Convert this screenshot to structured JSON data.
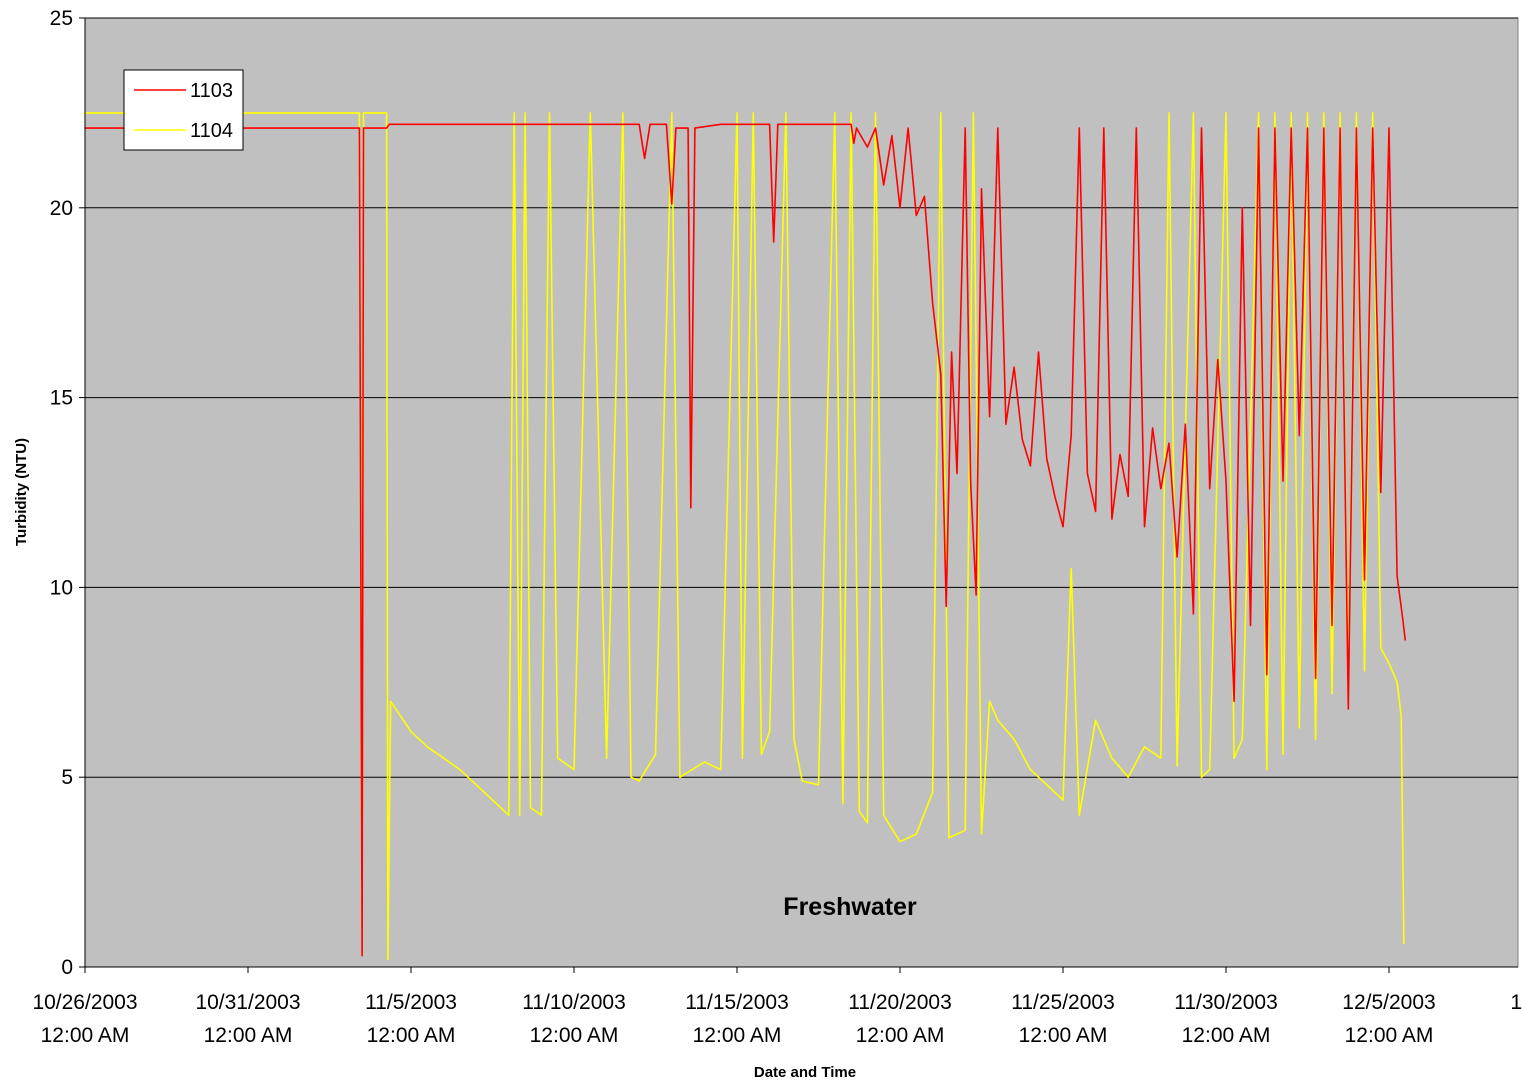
{
  "chart_data": {
    "type": "line",
    "xlabel": "Date and Time",
    "ylabel": "Turbidity (NTU)",
    "annotation": "Freshwater",
    "ylim": [
      0,
      25
    ],
    "yticks": [
      0,
      5,
      10,
      15,
      20,
      25
    ],
    "xlim": [
      "2003-10-26 00:00",
      "2003-12-09 00:00"
    ],
    "xticks": [
      {
        "date": "2003-10-26 00:00",
        "line1": "10/26/2003",
        "line2": "12:00 AM"
      },
      {
        "date": "2003-10-31 00:00",
        "line1": "10/31/2003",
        "line2": "12:00 AM"
      },
      {
        "date": "2003-11-05 00:00",
        "line1": "11/5/2003",
        "line2": "12:00 AM"
      },
      {
        "date": "2003-11-10 00:00",
        "line1": "11/10/2003",
        "line2": "12:00 AM"
      },
      {
        "date": "2003-11-15 00:00",
        "line1": "11/15/2003",
        "line2": "12:00 AM"
      },
      {
        "date": "2003-11-20 00:00",
        "line1": "11/20/2003",
        "line2": "12:00 AM"
      },
      {
        "date": "2003-11-25 00:00",
        "line1": "11/25/2003",
        "line2": "12:00 AM"
      },
      {
        "date": "2003-11-30 00:00",
        "line1": "11/30/2003",
        "line2": "12:00 AM"
      },
      {
        "date": "2003-12-05 00:00",
        "line1": "12/5/2003",
        "line2": "12:00 AM"
      },
      {
        "date": "2003-12-10 00:00",
        "line1": "1",
        "line2": ""
      }
    ],
    "grid": {
      "horizontal": true,
      "vertical": false
    },
    "legend_position": "top-left",
    "background_color": "#c0c0c0",
    "series": [
      {
        "name": "1103",
        "color": "#ff0000",
        "points": [
          [
            "2003-10-26 00:00",
            22.1
          ],
          [
            "2003-11-03 10:00",
            22.1
          ],
          [
            "2003-11-03 12:00",
            0.3
          ],
          [
            "2003-11-03 13:00",
            22.1
          ],
          [
            "2003-11-04 06:00",
            22.1
          ],
          [
            "2003-11-04 08:00",
            22.2
          ],
          [
            "2003-11-12 00:00",
            22.2
          ],
          [
            "2003-11-12 04:00",
            21.3
          ],
          [
            "2003-11-12 08:00",
            22.2
          ],
          [
            "2003-11-12 20:00",
            22.2
          ],
          [
            "2003-11-13 00:00",
            20.1
          ],
          [
            "2003-11-13 03:00",
            22.1
          ],
          [
            "2003-11-13 12:00",
            22.1
          ],
          [
            "2003-11-13 14:00",
            12.1
          ],
          [
            "2003-11-13 17:00",
            22.1
          ],
          [
            "2003-11-14 12:00",
            22.2
          ],
          [
            "2003-11-16 00:00",
            22.2
          ],
          [
            "2003-11-16 03:00",
            19.1
          ],
          [
            "2003-11-16 06:00",
            22.2
          ],
          [
            "2003-11-18 12:00",
            22.2
          ],
          [
            "2003-11-18 14:00",
            21.7
          ],
          [
            "2003-11-18 16:00",
            22.1
          ],
          [
            "2003-11-19 00:00",
            21.6
          ],
          [
            "2003-11-19 06:00",
            22.1
          ],
          [
            "2003-11-19 12:00",
            20.6
          ],
          [
            "2003-11-19 18:00",
            21.9
          ],
          [
            "2003-11-20 00:00",
            20.0
          ],
          [
            "2003-11-20 06:00",
            22.1
          ],
          [
            "2003-11-20 12:00",
            19.8
          ],
          [
            "2003-11-20 18:00",
            20.3
          ],
          [
            "2003-11-21 00:00",
            17.5
          ],
          [
            "2003-11-21 06:00",
            15.6
          ],
          [
            "2003-11-21 10:00",
            9.5
          ],
          [
            "2003-11-21 14:00",
            16.2
          ],
          [
            "2003-11-21 18:00",
            13.0
          ],
          [
            "2003-11-22 00:00",
            22.1
          ],
          [
            "2003-11-22 04:00",
            12.8
          ],
          [
            "2003-11-22 08:00",
            9.8
          ],
          [
            "2003-11-22 12:00",
            20.5
          ],
          [
            "2003-11-22 18:00",
            14.5
          ],
          [
            "2003-11-23 00:00",
            22.1
          ],
          [
            "2003-11-23 06:00",
            14.3
          ],
          [
            "2003-11-23 12:00",
            15.8
          ],
          [
            "2003-11-23 18:00",
            13.9
          ],
          [
            "2003-11-24 00:00",
            13.2
          ],
          [
            "2003-11-24 06:00",
            16.2
          ],
          [
            "2003-11-24 12:00",
            13.4
          ],
          [
            "2003-11-24 18:00",
            12.4
          ],
          [
            "2003-11-25 00:00",
            11.6
          ],
          [
            "2003-11-25 06:00",
            14.0
          ],
          [
            "2003-11-25 12:00",
            22.1
          ],
          [
            "2003-11-25 18:00",
            13.0
          ],
          [
            "2003-11-26 00:00",
            12.0
          ],
          [
            "2003-11-26 06:00",
            22.1
          ],
          [
            "2003-11-26 12:00",
            11.8
          ],
          [
            "2003-11-26 18:00",
            13.5
          ],
          [
            "2003-11-27 00:00",
            12.4
          ],
          [
            "2003-11-27 06:00",
            22.1
          ],
          [
            "2003-11-27 12:00",
            11.6
          ],
          [
            "2003-11-27 18:00",
            14.2
          ],
          [
            "2003-11-28 00:00",
            12.6
          ],
          [
            "2003-11-28 06:00",
            13.8
          ],
          [
            "2003-11-28 12:00",
            10.8
          ],
          [
            "2003-11-28 18:00",
            14.3
          ],
          [
            "2003-11-29 00:00",
            9.3
          ],
          [
            "2003-11-29 06:00",
            22.1
          ],
          [
            "2003-11-29 12:00",
            12.6
          ],
          [
            "2003-11-29 18:00",
            16.0
          ],
          [
            "2003-11-30 00:00",
            12.8
          ],
          [
            "2003-11-30 06:00",
            7.0
          ],
          [
            "2003-11-30 12:00",
            20.0
          ],
          [
            "2003-11-30 18:00",
            9.0
          ],
          [
            "2003-12-01 00:00",
            22.1
          ],
          [
            "2003-12-01 06:00",
            7.7
          ],
          [
            "2003-12-01 12:00",
            22.1
          ],
          [
            "2003-12-01 18:00",
            12.8
          ],
          [
            "2003-12-02 00:00",
            22.1
          ],
          [
            "2003-12-02 06:00",
            14.0
          ],
          [
            "2003-12-02 12:00",
            22.1
          ],
          [
            "2003-12-02 18:00",
            7.6
          ],
          [
            "2003-12-03 00:00",
            22.1
          ],
          [
            "2003-12-03 06:00",
            9.0
          ],
          [
            "2003-12-03 12:00",
            22.1
          ],
          [
            "2003-12-03 18:00",
            6.8
          ],
          [
            "2003-12-04 00:00",
            22.1
          ],
          [
            "2003-12-04 06:00",
            10.2
          ],
          [
            "2003-12-04 12:00",
            22.1
          ],
          [
            "2003-12-04 18:00",
            12.5
          ],
          [
            "2003-12-05 00:00",
            22.1
          ],
          [
            "2003-12-05 06:00",
            10.3
          ],
          [
            "2003-12-05 10:00",
            9.2
          ],
          [
            "2003-12-05 12:00",
            8.6
          ]
        ]
      },
      {
        "name": "1104",
        "color": "#ffff00",
        "points": [
          [
            "2003-10-26 00:00",
            22.5
          ],
          [
            "2003-11-03 10:00",
            22.5
          ],
          [
            "2003-11-03 12:00",
            0.9
          ],
          [
            "2003-11-03 13:00",
            22.5
          ],
          [
            "2003-11-04 06:00",
            22.5
          ],
          [
            "2003-11-04 07:00",
            0.2
          ],
          [
            "2003-11-04 09:00",
            7.0
          ],
          [
            "2003-11-05 00:00",
            6.2
          ],
          [
            "2003-11-05 12:00",
            5.8
          ],
          [
            "2003-11-06 00:00",
            5.5
          ],
          [
            "2003-11-06 12:00",
            5.2
          ],
          [
            "2003-11-07 00:00",
            4.8
          ],
          [
            "2003-11-07 12:00",
            4.4
          ],
          [
            "2003-11-08 00:00",
            4.0
          ],
          [
            "2003-11-08 04:00",
            22.5
          ],
          [
            "2003-11-08 08:00",
            4.0
          ],
          [
            "2003-11-08 12:00",
            22.5
          ],
          [
            "2003-11-08 16:00",
            4.2
          ],
          [
            "2003-11-09 00:00",
            4.0
          ],
          [
            "2003-11-09 06:00",
            22.5
          ],
          [
            "2003-11-09 12:00",
            5.5
          ],
          [
            "2003-11-10 00:00",
            5.2
          ],
          [
            "2003-11-10 12:00",
            22.5
          ],
          [
            "2003-11-11 00:00",
            5.5
          ],
          [
            "2003-11-11 12:00",
            22.5
          ],
          [
            "2003-11-11 18:00",
            5.0
          ],
          [
            "2003-11-12 00:00",
            4.9
          ],
          [
            "2003-11-12 12:00",
            5.6
          ],
          [
            "2003-11-13 00:00",
            22.5
          ],
          [
            "2003-11-13 06:00",
            5.0
          ],
          [
            "2003-11-14 00:00",
            5.4
          ],
          [
            "2003-11-14 12:00",
            5.2
          ],
          [
            "2003-11-15 00:00",
            22.5
          ],
          [
            "2003-11-15 04:00",
            5.5
          ],
          [
            "2003-11-15 12:00",
            22.5
          ],
          [
            "2003-11-15 18:00",
            5.6
          ],
          [
            "2003-11-16 00:00",
            6.2
          ],
          [
            "2003-11-16 12:00",
            22.5
          ],
          [
            "2003-11-16 18:00",
            6.0
          ],
          [
            "2003-11-17 00:00",
            4.9
          ],
          [
            "2003-11-17 12:00",
            4.8
          ],
          [
            "2003-11-18 00:00",
            22.5
          ],
          [
            "2003-11-18 06:00",
            4.3
          ],
          [
            "2003-11-18 12:00",
            22.5
          ],
          [
            "2003-11-18 18:00",
            4.1
          ],
          [
            "2003-11-19 00:00",
            3.8
          ],
          [
            "2003-11-19 06:00",
            22.5
          ],
          [
            "2003-11-19 12:00",
            4.0
          ],
          [
            "2003-11-20 00:00",
            3.3
          ],
          [
            "2003-11-20 12:00",
            3.5
          ],
          [
            "2003-11-21 00:00",
            4.6
          ],
          [
            "2003-11-21 06:00",
            22.5
          ],
          [
            "2003-11-21 12:00",
            3.4
          ],
          [
            "2003-11-22 00:00",
            3.6
          ],
          [
            "2003-11-22 06:00",
            22.5
          ],
          [
            "2003-11-22 12:00",
            3.5
          ],
          [
            "2003-11-22 18:00",
            7.0
          ],
          [
            "2003-11-23 00:00",
            6.5
          ],
          [
            "2003-11-23 12:00",
            6.0
          ],
          [
            "2003-11-24 00:00",
            5.2
          ],
          [
            "2003-11-24 12:00",
            4.8
          ],
          [
            "2003-11-25 00:00",
            4.4
          ],
          [
            "2003-11-25 06:00",
            10.5
          ],
          [
            "2003-11-25 12:00",
            4.0
          ],
          [
            "2003-11-26 00:00",
            6.5
          ],
          [
            "2003-11-26 12:00",
            5.5
          ],
          [
            "2003-11-27 00:00",
            5.0
          ],
          [
            "2003-11-27 12:00",
            5.8
          ],
          [
            "2003-11-28 00:00",
            5.5
          ],
          [
            "2003-11-28 06:00",
            22.5
          ],
          [
            "2003-11-28 12:00",
            5.3
          ],
          [
            "2003-11-29 00:00",
            22.5
          ],
          [
            "2003-11-29 06:00",
            5.0
          ],
          [
            "2003-11-29 12:00",
            5.2
          ],
          [
            "2003-11-30 00:00",
            22.5
          ],
          [
            "2003-11-30 06:00",
            5.5
          ],
          [
            "2003-11-30 12:00",
            6.0
          ],
          [
            "2003-12-01 00:00",
            22.5
          ],
          [
            "2003-12-01 06:00",
            5.2
          ],
          [
            "2003-12-01 12:00",
            22.5
          ],
          [
            "2003-12-01 18:00",
            5.6
          ],
          [
            "2003-12-02 00:00",
            22.5
          ],
          [
            "2003-12-02 06:00",
            6.3
          ],
          [
            "2003-12-02 12:00",
            22.5
          ],
          [
            "2003-12-02 18:00",
            6.0
          ],
          [
            "2003-12-03 00:00",
            22.5
          ],
          [
            "2003-12-03 06:00",
            7.2
          ],
          [
            "2003-12-03 12:00",
            22.5
          ],
          [
            "2003-12-03 18:00",
            7.5
          ],
          [
            "2003-12-04 00:00",
            22.5
          ],
          [
            "2003-12-04 06:00",
            7.8
          ],
          [
            "2003-12-04 12:00",
            22.5
          ],
          [
            "2003-12-04 18:00",
            8.4
          ],
          [
            "2003-12-05 00:00",
            8.0
          ],
          [
            "2003-12-05 06:00",
            7.5
          ],
          [
            "2003-12-05 09:00",
            6.6
          ],
          [
            "2003-12-05 11:00",
            0.6
          ]
        ]
      }
    ]
  }
}
